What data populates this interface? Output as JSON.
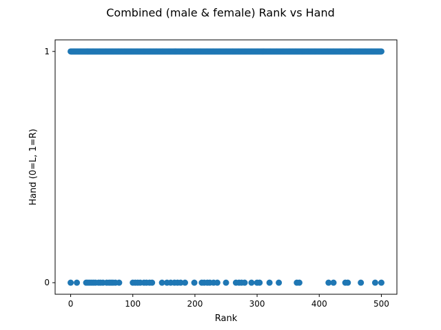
{
  "chart_data": {
    "type": "scatter",
    "title": "Combined (male & female) Rank vs Hand",
    "xlabel": "Rank",
    "ylabel": "Hand (0=L, 1=R)",
    "xlim": [
      -25,
      525
    ],
    "ylim": [
      -0.05,
      1.05
    ],
    "x_ticks": [
      0,
      100,
      200,
      300,
      400,
      500
    ],
    "y_ticks": [
      0,
      1
    ],
    "grid": false,
    "color": "#1f77b4",
    "left_handed_ranks": [
      0,
      10,
      25,
      28,
      31,
      34,
      37,
      40,
      45,
      48,
      52,
      58,
      62,
      65,
      68,
      72,
      78,
      100,
      104,
      108,
      112,
      118,
      122,
      127,
      131,
      147,
      155,
      161,
      167,
      172,
      177,
      184,
      199,
      211,
      215,
      220,
      224,
      230,
      236,
      250,
      266,
      271,
      275,
      280,
      291,
      300,
      304,
      320,
      335,
      364,
      368,
      415,
      423,
      442,
      446,
      467,
      490,
      500
    ],
    "right_handed_range": [
      0,
      500
    ]
  }
}
